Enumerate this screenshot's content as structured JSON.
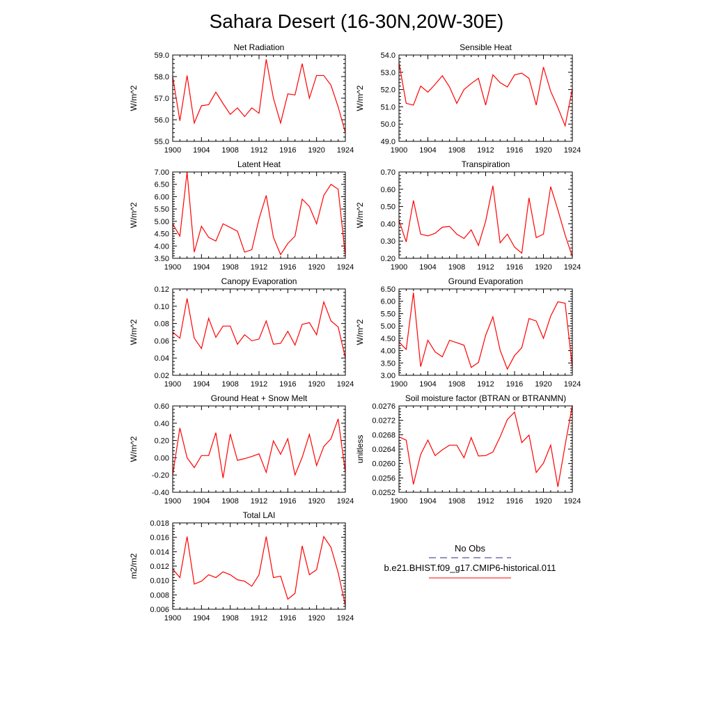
{
  "title": "Sahara Desert (16-30N,20W-30E)",
  "legend": {
    "obs_label": "No Obs",
    "model_label": "b.e21.BHIST.f09_g17.CMIP6-historical.011",
    "obs_color": "#2a2a8a",
    "model_color": "#ff0000"
  },
  "chart_data": [
    {
      "type": "line",
      "title": "Net Radiation",
      "ylabel": "W/m^2",
      "xlim": [
        1900,
        1924
      ],
      "ylim": [
        55.0,
        59.0
      ],
      "x_ticks": [
        "1900",
        "1904",
        "1908",
        "1912",
        "1916",
        "1920",
        "1924"
      ],
      "y_ticks": [
        "55.0",
        "56.0",
        "57.0",
        "58.0",
        "59.0"
      ],
      "series": [
        {
          "color": "#ff0000",
          "x": [
            1900,
            1901,
            1902,
            1903,
            1904,
            1905,
            1906,
            1907,
            1908,
            1909,
            1910,
            1911,
            1912,
            1913,
            1914,
            1915,
            1916,
            1917,
            1918,
            1919,
            1920,
            1921,
            1922,
            1923,
            1924
          ],
          "values": [
            58.0,
            55.95,
            58.05,
            55.85,
            56.65,
            56.7,
            57.28,
            56.75,
            56.25,
            56.55,
            56.15,
            56.55,
            56.3,
            58.8,
            57.0,
            55.85,
            57.2,
            57.15,
            58.6,
            57.0,
            58.05,
            58.05,
            57.6,
            56.6,
            55.4
          ]
        }
      ]
    },
    {
      "type": "line",
      "title": "Sensible Heat",
      "ylabel": "W/m^2",
      "xlim": [
        1900,
        1924
      ],
      "ylim": [
        49.0,
        54.0
      ],
      "x_ticks": [
        "1900",
        "1904",
        "1908",
        "1912",
        "1916",
        "1920",
        "1924"
      ],
      "y_ticks": [
        "49.0",
        "50.0",
        "51.0",
        "52.0",
        "53.0",
        "54.0"
      ],
      "series": [
        {
          "color": "#ff0000",
          "x": [
            1900,
            1901,
            1902,
            1903,
            1904,
            1905,
            1906,
            1907,
            1908,
            1909,
            1910,
            1911,
            1912,
            1913,
            1914,
            1915,
            1916,
            1917,
            1918,
            1919,
            1920,
            1921,
            1922,
            1923,
            1924
          ],
          "values": [
            53.55,
            51.2,
            51.1,
            52.2,
            51.85,
            52.3,
            52.8,
            52.15,
            51.2,
            52.0,
            52.35,
            52.65,
            51.1,
            52.85,
            52.4,
            52.15,
            52.85,
            52.95,
            52.65,
            51.1,
            53.3,
            51.9,
            50.95,
            49.9,
            52.05
          ]
        }
      ]
    },
    {
      "type": "line",
      "title": "Latent Heat",
      "ylabel": "W/m^2",
      "xlim": [
        1900,
        1924
      ],
      "ylim": [
        3.5,
        7.0
      ],
      "x_ticks": [
        "1900",
        "1904",
        "1908",
        "1912",
        "1916",
        "1920",
        "1924"
      ],
      "y_ticks": [
        "3.50",
        "4.00",
        "4.50",
        "5.00",
        "5.50",
        "6.00",
        "6.50",
        "7.00"
      ],
      "series": [
        {
          "color": "#ff0000",
          "x": [
            1900,
            1901,
            1902,
            1903,
            1904,
            1905,
            1906,
            1907,
            1908,
            1909,
            1910,
            1911,
            1912,
            1913,
            1914,
            1915,
            1916,
            1917,
            1918,
            1919,
            1920,
            1921,
            1922,
            1923,
            1924
          ],
          "values": [
            4.9,
            4.4,
            7.0,
            3.75,
            4.8,
            4.35,
            4.2,
            4.9,
            4.75,
            4.6,
            3.75,
            3.85,
            5.1,
            6.05,
            4.35,
            3.65,
            4.1,
            4.4,
            5.9,
            5.6,
            4.9,
            6.05,
            6.5,
            6.3,
            3.6
          ]
        }
      ]
    },
    {
      "type": "line",
      "title": "Transpiration",
      "ylabel": "W/m^2",
      "xlim": [
        1900,
        1924
      ],
      "ylim": [
        0.2,
        0.7
      ],
      "x_ticks": [
        "1900",
        "1904",
        "1908",
        "1912",
        "1916",
        "1920",
        "1924"
      ],
      "y_ticks": [
        "0.20",
        "0.30",
        "0.40",
        "0.50",
        "0.60",
        "0.70"
      ],
      "series": [
        {
          "color": "#ff0000",
          "x": [
            1900,
            1901,
            1902,
            1903,
            1904,
            1905,
            1906,
            1907,
            1908,
            1909,
            1910,
            1911,
            1912,
            1913,
            1914,
            1915,
            1916,
            1917,
            1918,
            1919,
            1920,
            1921,
            1922,
            1923,
            1924
          ],
          "values": [
            0.42,
            0.295,
            0.535,
            0.34,
            0.33,
            0.345,
            0.38,
            0.385,
            0.34,
            0.315,
            0.365,
            0.275,
            0.415,
            0.62,
            0.29,
            0.34,
            0.265,
            0.23,
            0.55,
            0.32,
            0.34,
            0.615,
            0.48,
            0.335,
            0.21
          ]
        }
      ]
    },
    {
      "type": "line",
      "title": "Canopy Evaporation",
      "ylabel": "W/m^2",
      "xlim": [
        1900,
        1924
      ],
      "ylim": [
        0.02,
        0.12
      ],
      "x_ticks": [
        "1900",
        "1904",
        "1908",
        "1912",
        "1916",
        "1920",
        "1924"
      ],
      "y_ticks": [
        "0.02",
        "0.04",
        "0.06",
        "0.08",
        "0.10",
        "0.12"
      ],
      "series": [
        {
          "color": "#ff0000",
          "x": [
            1900,
            1901,
            1902,
            1903,
            1904,
            1905,
            1906,
            1907,
            1908,
            1909,
            1910,
            1911,
            1912,
            1913,
            1914,
            1915,
            1916,
            1917,
            1918,
            1919,
            1920,
            1921,
            1922,
            1923,
            1924
          ],
          "values": [
            0.07,
            0.063,
            0.109,
            0.063,
            0.051,
            0.086,
            0.064,
            0.077,
            0.077,
            0.056,
            0.067,
            0.06,
            0.062,
            0.083,
            0.056,
            0.057,
            0.071,
            0.055,
            0.079,
            0.081,
            0.067,
            0.105,
            0.083,
            0.076,
            0.04
          ]
        }
      ]
    },
    {
      "type": "line",
      "title": "Ground Evaporation",
      "ylabel": "W/m^2",
      "xlim": [
        1900,
        1924
      ],
      "ylim": [
        3.0,
        6.5
      ],
      "x_ticks": [
        "1900",
        "1904",
        "1908",
        "1912",
        "1916",
        "1920",
        "1924"
      ],
      "y_ticks": [
        "3.00",
        "3.50",
        "4.00",
        "4.50",
        "5.00",
        "5.50",
        "6.00",
        "6.50"
      ],
      "series": [
        {
          "color": "#ff0000",
          "x": [
            1900,
            1901,
            1902,
            1903,
            1904,
            1905,
            1906,
            1907,
            1908,
            1909,
            1910,
            1911,
            1912,
            1913,
            1914,
            1915,
            1916,
            1917,
            1918,
            1919,
            1920,
            1921,
            1922,
            1923,
            1924
          ],
          "values": [
            4.35,
            4.05,
            6.35,
            3.35,
            4.42,
            3.95,
            3.75,
            4.42,
            4.32,
            4.22,
            3.32,
            3.52,
            4.62,
            5.37,
            4.02,
            3.25,
            3.8,
            4.12,
            5.3,
            5.2,
            4.5,
            5.4,
            5.98,
            5.92,
            3.32
          ]
        }
      ]
    },
    {
      "type": "line",
      "title": "Ground Heat + Snow Melt",
      "ylabel": "W/m^2",
      "xlim": [
        1900,
        1924
      ],
      "ylim": [
        -0.4,
        0.6
      ],
      "x_ticks": [
        "1900",
        "1904",
        "1908",
        "1912",
        "1916",
        "1920",
        "1924"
      ],
      "y_ticks": [
        "-0.40",
        "-0.20",
        "0.00",
        "0.20",
        "0.40",
        "0.60"
      ],
      "series": [
        {
          "color": "#ff0000",
          "x": [
            1900,
            1901,
            1902,
            1903,
            1904,
            1905,
            1906,
            1907,
            1908,
            1909,
            1910,
            1911,
            1912,
            1913,
            1914,
            1915,
            1916,
            1917,
            1918,
            1919,
            1920,
            1921,
            1922,
            1923,
            1924
          ],
          "values": [
            -0.2,
            0.345,
            0.0,
            -0.115,
            0.025,
            0.025,
            0.29,
            -0.235,
            0.275,
            -0.03,
            -0.01,
            0.015,
            0.045,
            -0.17,
            0.195,
            0.04,
            0.22,
            -0.2,
            0.005,
            0.27,
            -0.09,
            0.13,
            0.22,
            0.45,
            -0.17
          ]
        }
      ]
    },
    {
      "type": "line",
      "title": "Soil moisture factor (BTRAN or BTRANMN)",
      "ylabel": "unitless",
      "xlim": [
        1900,
        1924
      ],
      "ylim": [
        0.0252,
        0.0276
      ],
      "x_ticks": [
        "1900",
        "1904",
        "1908",
        "1912",
        "1916",
        "1920",
        "1924"
      ],
      "y_ticks": [
        "0.0252",
        "0.0256",
        "0.0260",
        "0.0264",
        "0.0268",
        "0.0272",
        "0.0276"
      ],
      "series": [
        {
          "color": "#ff0000",
          "x": [
            1900,
            1901,
            1902,
            1903,
            1904,
            1905,
            1906,
            1907,
            1908,
            1909,
            1910,
            1911,
            1912,
            1913,
            1914,
            1915,
            1916,
            1917,
            1918,
            1919,
            1920,
            1921,
            1922,
            1923,
            1924
          ],
          "values": [
            0.02674,
            0.02665,
            0.02542,
            0.02625,
            0.02665,
            0.02622,
            0.02638,
            0.02651,
            0.02651,
            0.02616,
            0.02672,
            0.02621,
            0.02622,
            0.02632,
            0.02674,
            0.02722,
            0.02743,
            0.02658,
            0.02679,
            0.02575,
            0.02601,
            0.02651,
            0.02535,
            0.02651,
            0.02762
          ]
        }
      ]
    },
    {
      "type": "line",
      "title": "Total LAI",
      "ylabel": "m2/m2",
      "xlim": [
        1900,
        1924
      ],
      "ylim": [
        0.006,
        0.018
      ],
      "x_ticks": [
        "1900",
        "1904",
        "1908",
        "1912",
        "1916",
        "1920",
        "1924"
      ],
      "y_ticks": [
        "0.006",
        "0.008",
        "0.010",
        "0.012",
        "0.014",
        "0.016",
        "0.018"
      ],
      "series": [
        {
          "color": "#ff0000",
          "x": [
            1900,
            1901,
            1902,
            1903,
            1904,
            1905,
            1906,
            1907,
            1908,
            1909,
            1910,
            1911,
            1912,
            1913,
            1914,
            1915,
            1916,
            1917,
            1918,
            1919,
            1920,
            1921,
            1922,
            1923,
            1924
          ],
          "values": [
            0.0116,
            0.0104,
            0.0161,
            0.0095,
            0.0099,
            0.0108,
            0.0104,
            0.0112,
            0.0108,
            0.0101,
            0.0099,
            0.0092,
            0.0108,
            0.0161,
            0.0104,
            0.0106,
            0.0074,
            0.0082,
            0.0148,
            0.0108,
            0.0115,
            0.0161,
            0.0146,
            0.0111,
            0.0065
          ]
        }
      ]
    }
  ]
}
